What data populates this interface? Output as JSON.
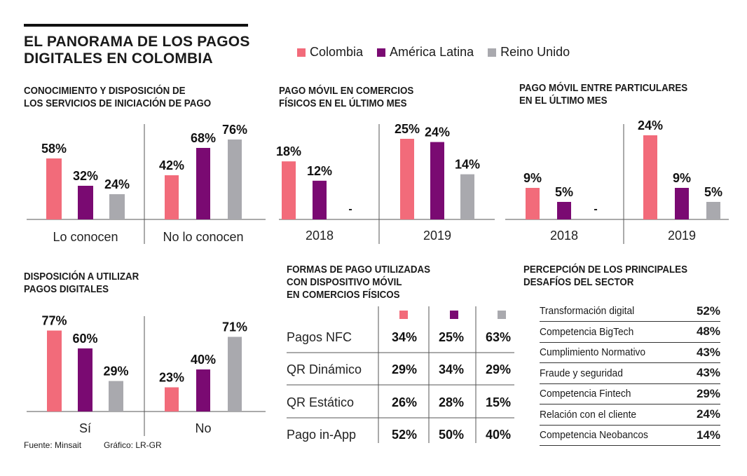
{
  "header": {
    "title_line1": "EL PANORAMA DE LOS PAGOS",
    "title_line2": "DIGITALES EN COLOMBIA"
  },
  "legend": [
    {
      "name": "Colombia",
      "color": "#f26b7a"
    },
    {
      "name": "América Latina",
      "color": "#7a0a72"
    },
    {
      "name": "Reino Unido",
      "color": "#a9a9ae"
    }
  ],
  "panels": {
    "conocimiento": {
      "title_line1": "CONOCIMIENTO Y DISPOSICIÓN DE",
      "title_line2": "LOS SERVICIOS DE INICIACIÓN DE PAGO"
    },
    "pago_comercios": {
      "title_line1": "PAGO MÓVIL EN COMERCIOS",
      "title_line2": "FÍSICOS EN EL ÚLTIMO MES"
    },
    "pago_particulares": {
      "title_line1": "PAGO MÓVIL ENTRE PARTICULARES",
      "title_line2": "EN EL ÚLTIMO MES"
    },
    "disposicion": {
      "title_line1": "DISPOSICIÓN A UTILIZAR",
      "title_line2": "PAGOS DIGITALES"
    },
    "formas": {
      "title_line1": "FORMAS DE PAGO UTILIZADAS",
      "title_line2": "CON DISPOSITIVO MÓVIL",
      "title_line3": "EN COMERCIOS FÍSICOS"
    },
    "desafios": {
      "title_line1": "PERCEPCIÓN DE LOS PRINCIPALES",
      "title_line2": "DESAFÍOS DEL SECTOR"
    }
  },
  "chart_data": [
    {
      "id": "conocimiento",
      "type": "bar",
      "title": "CONOCIMIENTO Y DISPOSICIÓN DE LOS SERVICIOS DE INICIACIÓN DE PAGO",
      "categories": [
        "Lo conocen",
        "No lo conocen"
      ],
      "series": [
        {
          "name": "Colombia",
          "values": [
            58,
            42
          ]
        },
        {
          "name": "América Latina",
          "values": [
            32,
            68
          ]
        },
        {
          "name": "Reino Unido",
          "values": [
            24,
            76
          ]
        }
      ],
      "value_labels": [
        [
          "58%",
          "32%",
          "24%"
        ],
        [
          "42%",
          "68%",
          "76%"
        ]
      ],
      "ylim": [
        0,
        100
      ]
    },
    {
      "id": "pago_comercios",
      "type": "bar",
      "title": "PAGO MÓVIL EN COMERCIOS FÍSICOS EN EL ÚLTIMO MES",
      "categories": [
        "2018",
        "2019"
      ],
      "series": [
        {
          "name": "Colombia",
          "values": [
            18,
            25
          ]
        },
        {
          "name": "América Latina",
          "values": [
            12,
            24
          ]
        },
        {
          "name": "Reino Unido",
          "values": [
            null,
            14
          ]
        }
      ],
      "value_labels": [
        [
          "18%",
          "12%",
          "-"
        ],
        [
          "25%",
          "24%",
          "14%"
        ]
      ],
      "ylim": [
        0,
        100
      ]
    },
    {
      "id": "pago_particulares",
      "type": "bar",
      "title": "PAGO MÓVIL ENTRE PARTICULARES EN EL ÚLTIMO MES",
      "categories": [
        "2018",
        "2019"
      ],
      "series": [
        {
          "name": "Colombia",
          "values": [
            9,
            24
          ]
        },
        {
          "name": "América Latina",
          "values": [
            5,
            9
          ]
        },
        {
          "name": "Reino Unido",
          "values": [
            null,
            5
          ]
        }
      ],
      "value_labels": [
        [
          "9%",
          "5%",
          "-"
        ],
        [
          "24%",
          "9%",
          "5%"
        ]
      ],
      "ylim": [
        0,
        100
      ]
    },
    {
      "id": "disposicion",
      "type": "bar",
      "title": "DISPOSICIÓN A UTILIZAR PAGOS DIGITALES",
      "categories": [
        "Sí",
        "No"
      ],
      "series": [
        {
          "name": "Colombia",
          "values": [
            77,
            23
          ]
        },
        {
          "name": "América Latina",
          "values": [
            60,
            40
          ]
        },
        {
          "name": "Reino Unido",
          "values": [
            29,
            71
          ]
        }
      ],
      "value_labels": [
        [
          "77%",
          "60%",
          "29%"
        ],
        [
          "23%",
          "40%",
          "71%"
        ]
      ],
      "ylim": [
        0,
        100
      ]
    },
    {
      "id": "formas",
      "type": "table",
      "title": "FORMAS DE PAGO UTILIZADAS CON DISPOSITIVO MÓVIL EN COMERCIOS FÍSICOS",
      "columns": [
        "Colombia",
        "América Latina",
        "Reino Unido"
      ],
      "rows": [
        {
          "label": "Pagos NFC",
          "values": [
            "34%",
            "25%",
            "63%"
          ]
        },
        {
          "label": "QR Dinámico",
          "values": [
            "29%",
            "34%",
            "29%"
          ]
        },
        {
          "label": "QR Estático",
          "values": [
            "26%",
            "28%",
            "15%"
          ]
        },
        {
          "label": "Pago in-App",
          "values": [
            "52%",
            "50%",
            "40%"
          ]
        }
      ]
    },
    {
      "id": "desafios",
      "type": "table",
      "title": "PERCEPCIÓN DE LOS PRINCIPALES DESAFÍOS DEL SECTOR",
      "rows": [
        {
          "label": "Transformación digital",
          "value": "52%"
        },
        {
          "label": "Competencia BigTech",
          "value": "48%"
        },
        {
          "label": "Cumplimiento Normativo",
          "value": "43%"
        },
        {
          "label": "Fraude y seguridad",
          "value": "43%"
        },
        {
          "label": "Competencia Fintech",
          "value": "29%"
        },
        {
          "label": "Relación con el cliente",
          "value": "24%"
        },
        {
          "label": "Competencia Neobancos",
          "value": "14%"
        }
      ]
    }
  ],
  "footer": {
    "source": "Fuente: Minsait",
    "graphic": "Gráfico: LR-GR"
  }
}
